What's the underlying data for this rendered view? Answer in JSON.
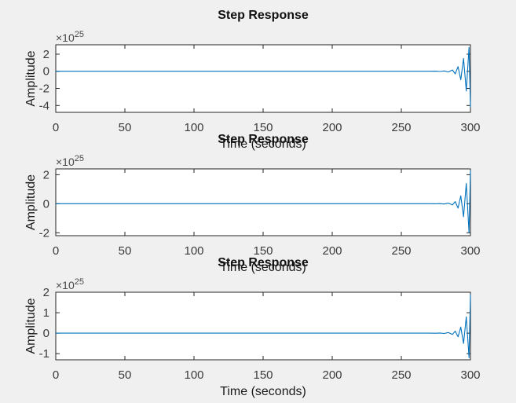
{
  "colors": {
    "background": "#f0f0f0",
    "axes_face": "#ffffff",
    "axes_edge": "#262626",
    "line": "#0072bd"
  },
  "chart_data": [
    {
      "type": "line",
      "title": "Step Response",
      "xlabel": "Time (seconds)",
      "ylabel": "Amplitude",
      "exponent_label": "×10",
      "exponent_power": "25",
      "xlim": [
        0,
        300
      ],
      "ylim": [
        -4.8,
        3.1
      ],
      "xticks": [
        0,
        50,
        100,
        150,
        200,
        250,
        300
      ],
      "yticks": [
        -4,
        -2,
        0,
        2
      ],
      "x_tick_labels": [
        "0",
        "50",
        "100",
        "150",
        "200",
        "250",
        "300"
      ],
      "y_tick_labels": [
        "-4",
        "-2",
        "0",
        "2"
      ],
      "grid": false,
      "series": [
        {
          "x": [
            0,
            265,
            270,
            275,
            278,
            281,
            284,
            287,
            289,
            291,
            293,
            295,
            297,
            299,
            300
          ],
          "y": [
            0,
            0,
            0.003,
            0.01,
            -0.02,
            0.04,
            -0.08,
            0.15,
            -0.3,
            0.55,
            -1.0,
            1.5,
            -2.3,
            2.8,
            -4.2
          ]
        }
      ]
    },
    {
      "type": "line",
      "title": "Step Response",
      "xlabel": "Time (seconds)",
      "ylabel": "Amplitude",
      "exponent_label": "×10",
      "exponent_power": "25",
      "xlim": [
        0,
        300
      ],
      "ylim": [
        -2.2,
        2.4
      ],
      "xticks": [
        0,
        50,
        100,
        150,
        200,
        250,
        300
      ],
      "yticks": [
        -2,
        0,
        2
      ],
      "x_tick_labels": [
        "0",
        "50",
        "100",
        "150",
        "200",
        "250",
        "300"
      ],
      "y_tick_labels": [
        "-2",
        "0",
        "2"
      ],
      "grid": false,
      "series": [
        {
          "x": [
            0,
            265,
            270,
            275,
            278,
            281,
            284,
            287,
            289,
            291,
            293,
            295,
            297,
            299,
            300
          ],
          "y": [
            0,
            0,
            0.002,
            -0.005,
            0.01,
            -0.02,
            0.04,
            -0.08,
            0.15,
            -0.3,
            0.55,
            -0.9,
            1.4,
            -2.0,
            2.3
          ]
        }
      ]
    },
    {
      "type": "line",
      "title": "Step Response",
      "xlabel": "Time (seconds)",
      "ylabel": "Amplitude",
      "exponent_label": "×10",
      "exponent_power": "25",
      "xlim": [
        0,
        300
      ],
      "ylim": [
        -1.3,
        2.0
      ],
      "xticks": [
        0,
        50,
        100,
        150,
        200,
        250,
        300
      ],
      "yticks": [
        -1,
        0,
        1,
        2
      ],
      "x_tick_labels": [
        "0",
        "50",
        "100",
        "150",
        "200",
        "250",
        "300"
      ],
      "y_tick_labels": [
        "-1",
        "0",
        "1",
        "2"
      ],
      "grid": false,
      "series": [
        {
          "x": [
            0,
            265,
            270,
            275,
            278,
            281,
            284,
            287,
            289,
            291,
            293,
            295,
            297,
            299,
            300
          ],
          "y": [
            0,
            0,
            0.002,
            -0.004,
            0.008,
            -0.015,
            0.03,
            -0.06,
            0.1,
            -0.18,
            0.3,
            -0.5,
            0.8,
            -1.2,
            1.9
          ]
        }
      ]
    }
  ]
}
